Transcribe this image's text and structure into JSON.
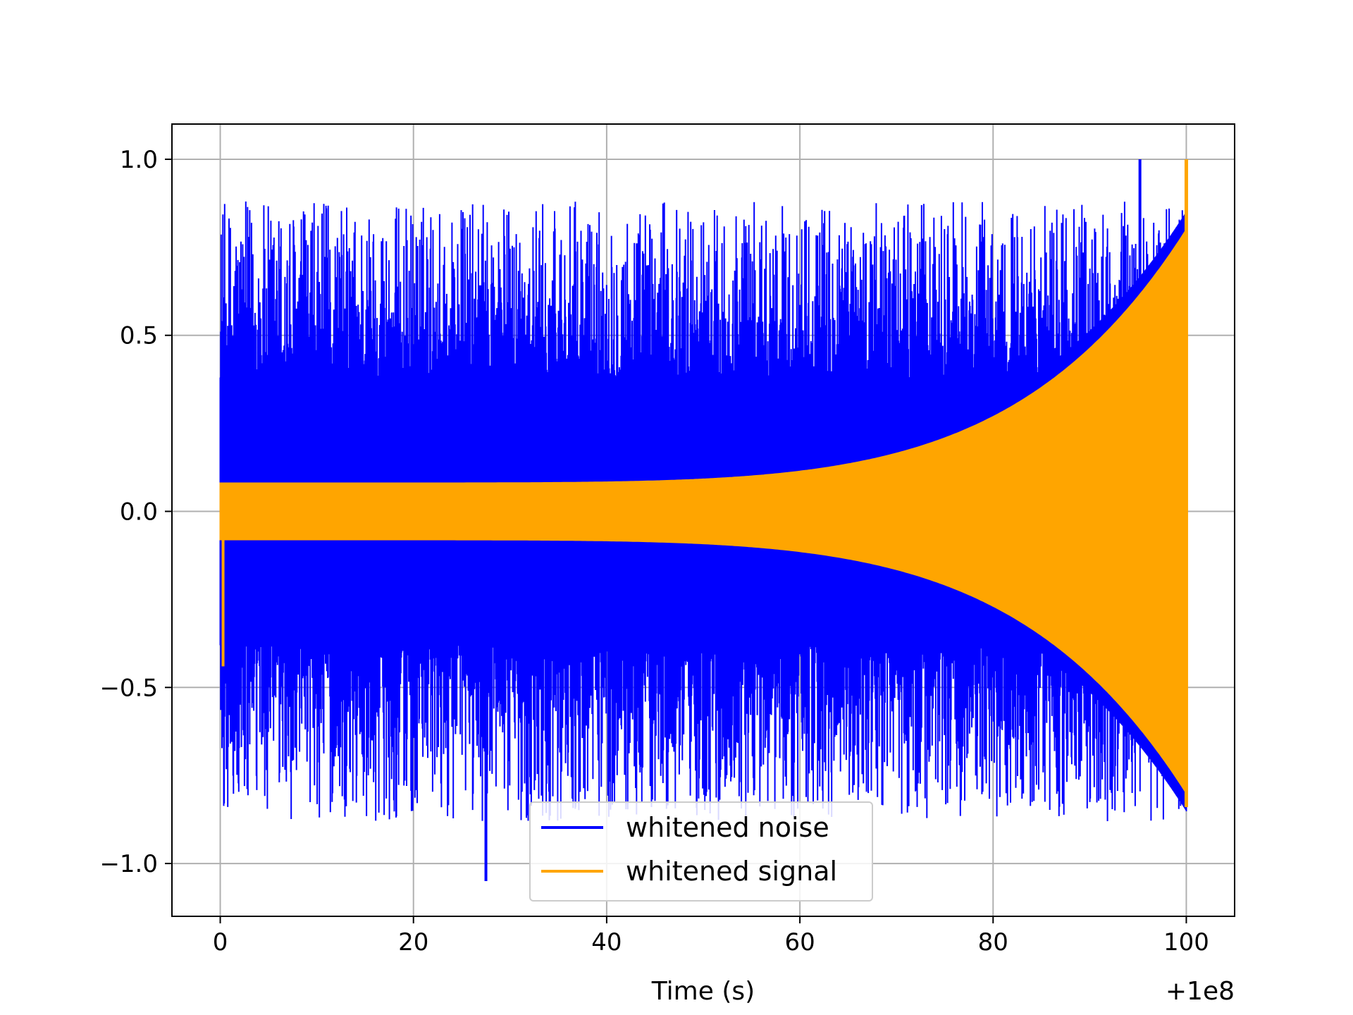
{
  "chart_data": {
    "type": "line",
    "xlabel": "Time (s)",
    "ylabel": "",
    "xlim": [
      -5,
      105
    ],
    "ylim": [
      -1.15,
      1.1
    ],
    "x_ticks": [
      0,
      20,
      40,
      60,
      80,
      100
    ],
    "x_tick_labels": [
      "0",
      "20",
      "40",
      "60",
      "80",
      "100"
    ],
    "x_offset_label": "+1e8",
    "y_ticks": [
      -1.0,
      -0.5,
      0.0,
      0.5,
      1.0
    ],
    "y_tick_labels": [
      "−1.0",
      "−0.5",
      "0.0",
      "0.5",
      "1.0"
    ],
    "grid": true,
    "legend_position": "bottom-center",
    "series": [
      {
        "name": "whitened noise",
        "color": "#0000ff",
        "x_range": [
          0,
          100
        ],
        "max": 1.0,
        "min": -1.05,
        "peak_max_at": 95.2,
        "peak_min_at": 27.5
      },
      {
        "name": "whitened signal",
        "color": "#ffa500",
        "x_range": [
          0,
          100
        ],
        "envelope_start": 0.08,
        "envelope_end": 0.8,
        "max": 1.0,
        "min": -0.84
      }
    ]
  }
}
